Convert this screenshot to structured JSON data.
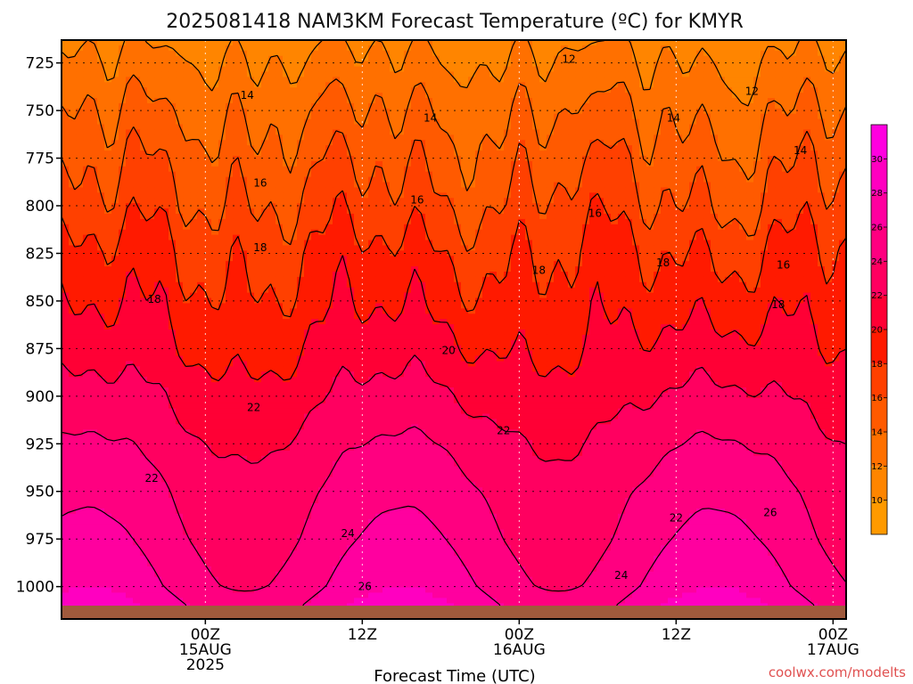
{
  "chart_data": {
    "type": "contour",
    "title": "2025081418 NAM3KM Forecast Temperature (ºC) for KMYR",
    "xlabel": "Forecast Time (UTC)",
    "ylabel": "",
    "credit": "coolwx.com/modelts",
    "y_axis": {
      "unit": "hPa",
      "inverted": true,
      "ylim": [
        713,
        1017
      ],
      "ticks": [
        725,
        750,
        775,
        800,
        825,
        850,
        875,
        900,
        925,
        950,
        975,
        1000
      ]
    },
    "x_axis": {
      "unit": "forecast hour",
      "xlim": [
        -5,
        55
      ],
      "ticks": [
        {
          "hour": 6,
          "lines": [
            "00Z",
            "15AUG",
            "2025"
          ]
        },
        {
          "hour": 18,
          "lines": [
            "12Z"
          ]
        },
        {
          "hour": 30,
          "lines": [
            "00Z",
            "16AUG"
          ]
        },
        {
          "hour": 42,
          "lines": [
            "12Z"
          ]
        },
        {
          "hour": 54,
          "lines": [
            "00Z",
            "17AUG"
          ]
        }
      ]
    },
    "grid": true,
    "ground_pressure": 1010,
    "colorbar": {
      "levels": [
        10,
        12,
        14,
        16,
        18,
        20,
        22,
        24,
        26,
        28,
        30
      ],
      "min": 8,
      "max": 32,
      "colors": [
        "#ff9a00",
        "#ff8500",
        "#ff7000",
        "#ff5a00",
        "#ff4000",
        "#ff1a00",
        "#ff0035",
        "#ff0060",
        "#ff0080",
        "#ff009f",
        "#ff00c0",
        "#ff00e0"
      ]
    },
    "contours": [
      {
        "level": 12,
        "label_positions": [
          {
            "x": 33.8,
            "p": 723
          },
          {
            "x": 47.8,
            "p": 740
          }
        ]
      },
      {
        "level": 14,
        "label_positions": [
          {
            "x": 9.2,
            "p": 742
          },
          {
            "x": 23.2,
            "p": 754
          },
          {
            "x": 41.8,
            "p": 754
          },
          {
            "x": 51.5,
            "p": 771
          }
        ]
      },
      {
        "level": 16,
        "label_positions": [
          {
            "x": 10.2,
            "p": 788
          },
          {
            "x": 22.2,
            "p": 797
          },
          {
            "x": 35.8,
            "p": 804
          },
          {
            "x": 50.2,
            "p": 831
          }
        ]
      },
      {
        "level": 18,
        "label_positions": [
          {
            "x": 10.2,
            "p": 822
          },
          {
            "x": 31.5,
            "p": 834
          },
          {
            "x": 41,
            "p": 830
          },
          {
            "x": 2.1,
            "p": 849
          },
          {
            "x": 49.8,
            "p": 852
          }
        ]
      },
      {
        "level": 20,
        "label_positions": [
          {
            "x": 24.6,
            "p": 876
          }
        ]
      },
      {
        "level": 22,
        "label_positions": [
          {
            "x": 9.7,
            "p": 906
          },
          {
            "x": 28.8,
            "p": 918
          },
          {
            "x": 1.9,
            "p": 943
          },
          {
            "x": 42,
            "p": 964
          }
        ]
      },
      {
        "level": 24,
        "label_positions": [
          {
            "x": 16.9,
            "p": 972
          },
          {
            "x": 37.8,
            "p": 994
          }
        ]
      },
      {
        "level": 26,
        "label_positions": [
          {
            "x": 49.2,
            "p": 961
          },
          {
            "x": 18.2,
            "p": 1000
          }
        ]
      }
    ],
    "temperature_profile": {
      "description_levels_hPa": [
        713,
        750,
        775,
        800,
        825,
        850,
        875,
        900,
        925,
        950,
        975,
        1000,
        1010
      ],
      "typical_values_C": [
        11.5,
        13.8,
        15.2,
        16.5,
        18.0,
        19.0,
        20.2,
        21.5,
        22.8,
        23.8,
        24.5,
        25.5,
        26.5
      ]
    }
  }
}
